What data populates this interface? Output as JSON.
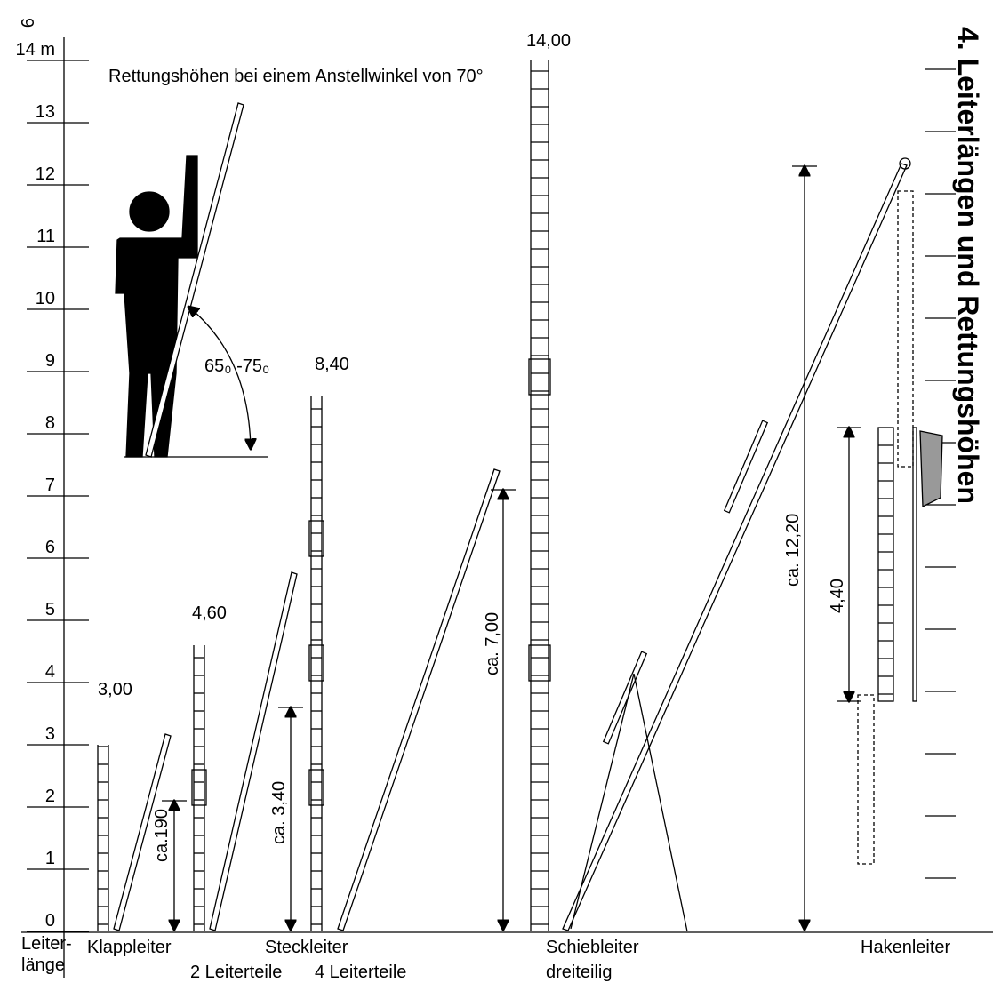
{
  "page_number": "9",
  "title": "4. Leiterlängen und Rettungshöhen",
  "subtitle": "Rettungshöhen bei einem Anstellwinkel von 70°",
  "axis": {
    "labels": [
      "0",
      "1",
      "2",
      "3",
      "4",
      "5",
      "6",
      "7",
      "8",
      "9",
      "10",
      "11",
      "12",
      "13",
      "14 m"
    ],
    "caption": [
      "Leiter-",
      "länge"
    ]
  },
  "angle_label": "65₀ -75₀",
  "ladders": [
    {
      "length_label": "3,00",
      "height_label": "ca.190"
    },
    {
      "length_label": "4,60",
      "height_label": "ca. 3,40"
    },
    {
      "length_label": "8,40",
      "height_label": "ca. 7,00"
    },
    {
      "length_label": "14,00",
      "height_label": "ca. 12,20"
    },
    {
      "height_label": "4,40"
    }
  ],
  "bottom_labels": [
    "Klappleiter",
    "Steckleiter",
    "2 Leiterteile",
    "4 Leiterteile",
    "Schiebleiter",
    "dreiteilig",
    "Hakenleiter"
  ]
}
